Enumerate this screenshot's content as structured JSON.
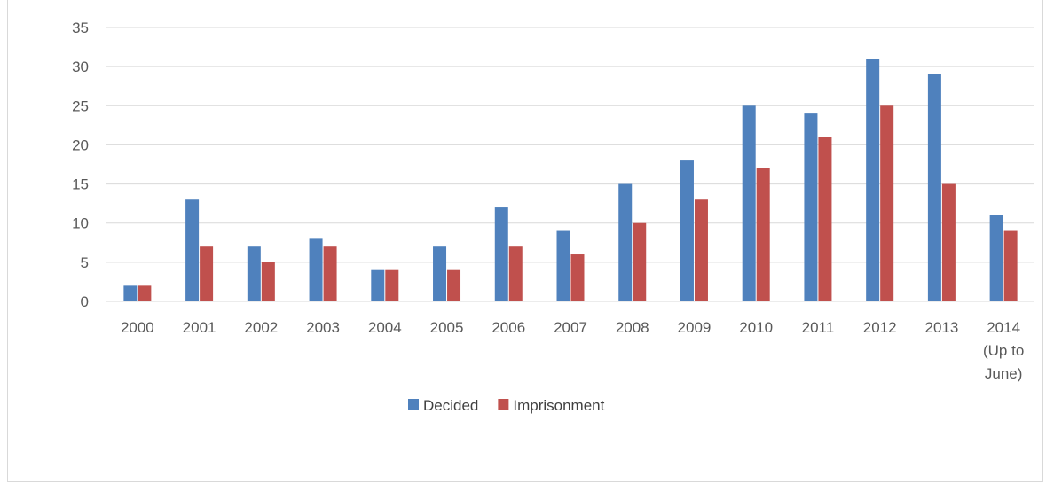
{
  "chart_data": {
    "type": "bar",
    "categories": [
      [
        "2000"
      ],
      [
        "2001"
      ],
      [
        "2002"
      ],
      [
        "2003"
      ],
      [
        "2004"
      ],
      [
        "2005"
      ],
      [
        "2006"
      ],
      [
        "2007"
      ],
      [
        "2008"
      ],
      [
        "2009"
      ],
      [
        "2010"
      ],
      [
        "2011"
      ],
      [
        "2012"
      ],
      [
        "2013"
      ],
      [
        "2014",
        "(Up to",
        "June)"
      ]
    ],
    "series": [
      {
        "name": "Decided",
        "color": "#4f81bd",
        "values": [
          2,
          13,
          7,
          8,
          4,
          7,
          12,
          9,
          15,
          18,
          25,
          24,
          31,
          29,
          11
        ]
      },
      {
        "name": "Imprisonment",
        "color": "#c0504d",
        "values": [
          2,
          7,
          5,
          7,
          4,
          4,
          7,
          6,
          10,
          13,
          17,
          21,
          25,
          15,
          9
        ]
      }
    ],
    "ylim": [
      0,
      35
    ],
    "yticks": [
      0,
      5,
      10,
      15,
      20,
      25,
      30,
      35
    ],
    "grid": true,
    "legend": "bottom-center",
    "gridline_color": "#d9d9d9"
  }
}
